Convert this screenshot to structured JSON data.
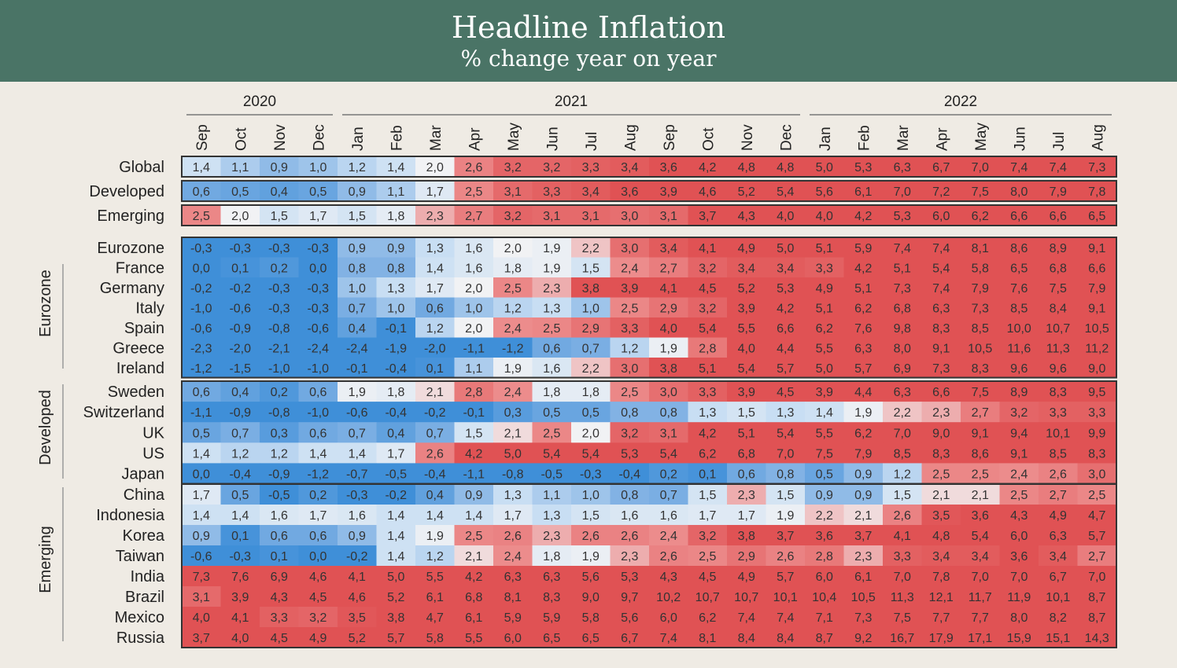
{
  "header": {
    "title": "Headline Inflation",
    "subtitle": "% change year on year"
  },
  "chart_data": {
    "type": "heatmap",
    "title": "Headline Inflation",
    "subtitle": "% change year on year",
    "years": [
      {
        "label": "2020",
        "months": [
          "Sep",
          "Oct",
          "Nov",
          "Dec"
        ]
      },
      {
        "label": "2021",
        "months": [
          "Jan",
          "Feb",
          "Mar",
          "Apr",
          "May",
          "Jun",
          "Jul",
          "Aug",
          "Sep",
          "Oct",
          "Nov",
          "Dec"
        ]
      },
      {
        "label": "2022",
        "months": [
          "Jan",
          "Feb",
          "Mar",
          "Apr",
          "May",
          "Jun",
          "Jul",
          "Aug"
        ]
      }
    ],
    "groups": [
      {
        "label": "",
        "rows": [
          {
            "name": "Global",
            "values": [
              "1,4",
              "1,1",
              "0,9",
              "1,0",
              "1,2",
              "1,4",
              "2,0",
              "2,6",
              "3,2",
              "3,2",
              "3,3",
              "3,4",
              "3,6",
              "4,2",
              "4,8",
              "4,8",
              "5,0",
              "5,3",
              "6,3",
              "6,7",
              "7,0",
              "7,4",
              "7,4",
              "7,3"
            ]
          }
        ]
      },
      {
        "label": "",
        "rows": [
          {
            "name": "Developed",
            "values": [
              "0,6",
              "0,5",
              "0,4",
              "0,5",
              "0,9",
              "1,1",
              "1,7",
              "2,5",
              "3,1",
              "3,3",
              "3,4",
              "3,6",
              "3,9",
              "4,6",
              "5,2",
              "5,4",
              "5,6",
              "6,1",
              "7,0",
              "7,2",
              "7,5",
              "8,0",
              "7,9",
              "7,8"
            ]
          }
        ]
      },
      {
        "label": "",
        "rows": [
          {
            "name": "Emerging",
            "values": [
              "2,5",
              "2,0",
              "1,5",
              "1,7",
              "1,5",
              "1,8",
              "2,3",
              "2,7",
              "3,2",
              "3,1",
              "3,1",
              "3,0",
              "3,1",
              "3,7",
              "4,3",
              "4,0",
              "4,0",
              "4,2",
              "5,3",
              "6,0",
              "6,2",
              "6,6",
              "6,6",
              "6,5"
            ]
          }
        ]
      },
      {
        "label": "",
        "rows": [
          {
            "name": "Eurozone",
            "values": [
              "-0,3",
              "-0,3",
              "-0,3",
              "-0,3",
              "0,9",
              "0,9",
              "1,3",
              "1,6",
              "2,0",
              "1,9",
              "2,2",
              "3,0",
              "3,4",
              "4,1",
              "4,9",
              "5,0",
              "5,1",
              "5,9",
              "7,4",
              "7,4",
              "8,1",
              "8,6",
              "8,9",
              "9,1"
            ]
          },
          {
            "name": "France",
            "values": [
              "0,0",
              "0,1",
              "0,2",
              "0,0",
              "0,8",
              "0,8",
              "1,4",
              "1,6",
              "1,8",
              "1,9",
              "1,5",
              "2,4",
              "2,7",
              "3,2",
              "3,4",
              "3,4",
              "3,3",
              "4,2",
              "5,1",
              "5,4",
              "5,8",
              "6,5",
              "6,8",
              "6,6"
            ]
          },
          {
            "name": "Germany",
            "values": [
              "-0,2",
              "-0,2",
              "-0,3",
              "-0,3",
              "1,0",
              "1,3",
              "1,7",
              "2,0",
              "2,5",
              "2,3",
              "3,8",
              "3,9",
              "4,1",
              "4,5",
              "5,2",
              "5,3",
              "4,9",
              "5,1",
              "7,3",
              "7,4",
              "7,9",
              "7,6",
              "7,5",
              "7,9"
            ]
          },
          {
            "name": "Italy",
            "values": [
              "-1,0",
              "-0,6",
              "-0,3",
              "-0,3",
              "0,7",
              "1,0",
              "0,6",
              "1,0",
              "1,2",
              "1,3",
              "1,0",
              "2,5",
              "2,9",
              "3,2",
              "3,9",
              "4,2",
              "5,1",
              "6,2",
              "6,8",
              "6,3",
              "7,3",
              "8,5",
              "8,4",
              "9,1"
            ]
          },
          {
            "name": "Spain",
            "values": [
              "-0,6",
              "-0,9",
              "-0,8",
              "-0,6",
              "0,4",
              "-0,1",
              "1,2",
              "2,0",
              "2,4",
              "2,5",
              "2,9",
              "3,3",
              "4,0",
              "5,4",
              "5,5",
              "6,6",
              "6,2",
              "7,6",
              "9,8",
              "8,3",
              "8,5",
              "10,0",
              "10,7",
              "10,5"
            ]
          },
          {
            "name": "Greece",
            "values": [
              "-2,3",
              "-2,0",
              "-2,1",
              "-2,4",
              "-2,4",
              "-1,9",
              "-2,0",
              "-1,1",
              "-1,2",
              "0,6",
              "0,7",
              "1,2",
              "1,9",
              "2,8",
              "4,0",
              "4,4",
              "5,5",
              "6,3",
              "8,0",
              "9,1",
              "10,5",
              "11,6",
              "11,3",
              "11,2"
            ]
          },
          {
            "name": "Ireland",
            "values": [
              "-1,2",
              "-1,5",
              "-1,0",
              "-1,0",
              "-0,1",
              "-0,4",
              "0,1",
              "1,1",
              "1,9",
              "1,6",
              "2,2",
              "3,0",
              "3,8",
              "5,1",
              "5,4",
              "5,7",
              "5,0",
              "5,7",
              "6,9",
              "7,3",
              "8,3",
              "9,6",
              "9,6",
              "9,0"
            ]
          }
        ]
      },
      {
        "label": "",
        "rows": [
          {
            "name": "Sweden",
            "values": [
              "0,6",
              "0,4",
              "0,2",
              "0,6",
              "1,9",
              "1,8",
              "2,1",
              "2,8",
              "2,4",
              "1,8",
              "1,8",
              "2,5",
              "3,0",
              "3,3",
              "3,9",
              "4,5",
              "3,9",
              "4,4",
              "6,3",
              "6,6",
              "7,5",
              "8,9",
              "8,3",
              "9,5"
            ]
          },
          {
            "name": "Switzerland",
            "values": [
              "-1,1",
              "-0,9",
              "-0,8",
              "-1,0",
              "-0,6",
              "-0,4",
              "-0,2",
              "-0,1",
              "0,3",
              "0,5",
              "0,5",
              "0,8",
              "0,8",
              "1,3",
              "1,5",
              "1,3",
              "1,4",
              "1,9",
              "2,2",
              "2,3",
              "2,7",
              "3,2",
              "3,3",
              "3,3"
            ]
          },
          {
            "name": "UK",
            "values": [
              "0,5",
              "0,7",
              "0,3",
              "0,6",
              "0,7",
              "0,4",
              "0,7",
              "1,5",
              "2,1",
              "2,5",
              "2,0",
              "3,2",
              "3,1",
              "4,2",
              "5,1",
              "5,4",
              "5,5",
              "6,2",
              "7,0",
              "9,0",
              "9,1",
              "9,4",
              "10,1",
              "9,9"
            ]
          },
          {
            "name": "US",
            "values": [
              "1,4",
              "1,2",
              "1,2",
              "1,4",
              "1,4",
              "1,7",
              "2,6",
              "4,2",
              "5,0",
              "5,4",
              "5,4",
              "5,3",
              "5,4",
              "6,2",
              "6,8",
              "7,0",
              "7,5",
              "7,9",
              "8,5",
              "8,3",
              "8,6",
              "9,1",
              "8,5",
              "8,3"
            ]
          },
          {
            "name": "Japan",
            "values": [
              "0,0",
              "-0,4",
              "-0,9",
              "-1,2",
              "-0,7",
              "-0,5",
              "-0,4",
              "-1,1",
              "-0,8",
              "-0,5",
              "-0,3",
              "-0,4",
              "0,2",
              "0,1",
              "0,6",
              "0,8",
              "0,5",
              "0,9",
              "1,2",
              "2,5",
              "2,5",
              "2,4",
              "2,6",
              "3,0"
            ]
          }
        ]
      },
      {
        "label": "",
        "rows": [
          {
            "name": "China",
            "values": [
              "1,7",
              "0,5",
              "-0,5",
              "0,2",
              "-0,3",
              "-0,2",
              "0,4",
              "0,9",
              "1,3",
              "1,1",
              "1,0",
              "0,8",
              "0,7",
              "1,5",
              "2,3",
              "1,5",
              "0,9",
              "0,9",
              "1,5",
              "2,1",
              "2,1",
              "2,5",
              "2,7",
              "2,5"
            ]
          },
          {
            "name": "Indonesia",
            "values": [
              "1,4",
              "1,4",
              "1,6",
              "1,7",
              "1,6",
              "1,4",
              "1,4",
              "1,4",
              "1,7",
              "1,3",
              "1,5",
              "1,6",
              "1,6",
              "1,7",
              "1,7",
              "1,9",
              "2,2",
              "2,1",
              "2,6",
              "3,5",
              "3,6",
              "4,3",
              "4,9",
              "4,7"
            ]
          },
          {
            "name": "Korea",
            "values": [
              "0,9",
              "0,1",
              "0,6",
              "0,6",
              "0,9",
              "1,4",
              "1,9",
              "2,5",
              "2,6",
              "2,3",
              "2,6",
              "2,6",
              "2,4",
              "3,2",
              "3,8",
              "3,7",
              "3,6",
              "3,7",
              "4,1",
              "4,8",
              "5,4",
              "6,0",
              "6,3",
              "5,7"
            ]
          },
          {
            "name": "Taiwan",
            "values": [
              "-0,6",
              "-0,3",
              "0,1",
              "0,0",
              "-0,2",
              "1,4",
              "1,2",
              "2,1",
              "2,4",
              "1,8",
              "1,9",
              "2,3",
              "2,6",
              "2,5",
              "2,9",
              "2,6",
              "2,8",
              "2,3",
              "3,3",
              "3,4",
              "3,4",
              "3,6",
              "3,4",
              "2,7"
            ]
          },
          {
            "name": "India",
            "values": [
              "7,3",
              "7,6",
              "6,9",
              "4,6",
              "4,1",
              "5,0",
              "5,5",
              "4,2",
              "6,3",
              "6,3",
              "5,6",
              "5,3",
              "4,3",
              "4,5",
              "4,9",
              "5,7",
              "6,0",
              "6,1",
              "7,0",
              "7,8",
              "7,0",
              "7,0",
              "6,7",
              "7,0"
            ]
          },
          {
            "name": "Brazil",
            "values": [
              "3,1",
              "3,9",
              "4,3",
              "4,5",
              "4,6",
              "5,2",
              "6,1",
              "6,8",
              "8,1",
              "8,3",
              "9,0",
              "9,7",
              "10,2",
              "10,7",
              "10,7",
              "10,1",
              "10,4",
              "10,5",
              "11,3",
              "12,1",
              "11,7",
              "11,9",
              "10,1",
              "8,7"
            ]
          },
          {
            "name": "Mexico",
            "values": [
              "4,0",
              "4,1",
              "3,3",
              "3,2",
              "3,5",
              "3,8",
              "4,7",
              "6,1",
              "5,9",
              "5,9",
              "5,8",
              "5,6",
              "6,0",
              "6,2",
              "7,4",
              "7,4",
              "7,1",
              "7,3",
              "7,5",
              "7,7",
              "7,7",
              "8,0",
              "8,2",
              "8,7"
            ]
          },
          {
            "name": "Russia",
            "values": [
              "3,7",
              "4,0",
              "4,5",
              "4,9",
              "5,2",
              "5,7",
              "5,8",
              "5,5",
              "6,0",
              "6,5",
              "6,5",
              "6,7",
              "7,4",
              "8,1",
              "8,4",
              "8,4",
              "8,7",
              "9,2",
              "16,7",
              "17,9",
              "17,1",
              "15,9",
              "15,1",
              "14,3"
            ]
          }
        ]
      }
    ],
    "side_labels": [
      "Eurozone",
      "Developed",
      "Emerging"
    ],
    "colors": {
      "banner": "#4a7466",
      "red": "#e05254",
      "blue": "#3f8fd8",
      "neutral": "#f1f2f4",
      "background": "#efebe4"
    }
  }
}
